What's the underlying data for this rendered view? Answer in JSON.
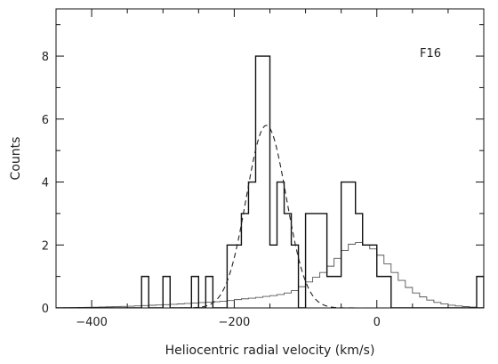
{
  "chart_data": {
    "type": "histogram",
    "annotation": "F16",
    "xlabel": "Heliocentric radial velocity (km/s)",
    "ylabel": "Counts",
    "xlim": [
      -450,
      150
    ],
    "ylim": [
      0,
      9.5
    ],
    "x_ticks": [
      -400,
      -200,
      0
    ],
    "x_tick_labels": [
      "−400",
      "−200",
      "0"
    ],
    "y_ticks": [
      0,
      2,
      4,
      6,
      8
    ],
    "y_tick_labels": [
      "0",
      "2",
      "4",
      "6",
      "8"
    ],
    "bin_width": 10,
    "observed": {
      "bin_edges": [
        -450,
        -330,
        -320,
        -300,
        -290,
        -260,
        -250,
        -240,
        -230,
        -210,
        -200,
        -190,
        -180,
        -170,
        -160,
        -150,
        -140,
        -130,
        -120,
        -110,
        -100,
        -80,
        -70,
        -50,
        -40,
        -30,
        -20,
        -10,
        0,
        20,
        140,
        150
      ],
      "counts": [
        0,
        1,
        0,
        1,
        0,
        1,
        0,
        1,
        0,
        2,
        2,
        3,
        4,
        8,
        8,
        2,
        4,
        3,
        2,
        0,
        3,
        3,
        1,
        4,
        4,
        3,
        2,
        2,
        1,
        0,
        1
      ]
    },
    "model": {
      "x": [
        -450,
        -400,
        -350,
        -320,
        -300,
        -280,
        -260,
        -240,
        -220,
        -210,
        -200,
        -190,
        -180,
        -170,
        -160,
        -150,
        -140,
        -130,
        -120,
        -110,
        -100,
        -90,
        -80,
        -70,
        -60,
        -50,
        -40,
        -30,
        -20,
        -10,
        0,
        10,
        20,
        30,
        40,
        50,
        60,
        70,
        80,
        100,
        120,
        140,
        150
      ],
      "y": [
        0,
        0.02,
        0.05,
        0.08,
        0.1,
        0.12,
        0.15,
        0.18,
        0.2,
        0.22,
        0.25,
        0.28,
        0.3,
        0.32,
        0.35,
        0.38,
        0.4,
        0.45,
        0.5,
        0.6,
        0.75,
        0.9,
        1.05,
        1.2,
        1.45,
        1.7,
        1.95,
        2.1,
        2.05,
        1.95,
        1.8,
        1.55,
        1.25,
        1.0,
        0.75,
        0.55,
        0.4,
        0.3,
        0.2,
        0.1,
        0.05,
        0.02,
        0.01
      ]
    },
    "gaussian": {
      "mean": -155,
      "sigma": 28,
      "amplitude": 5.8
    }
  }
}
